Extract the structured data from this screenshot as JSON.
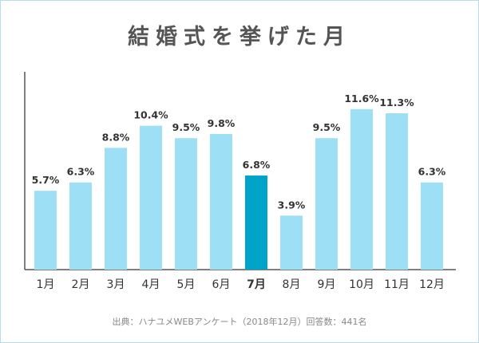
{
  "chart_data": {
    "type": "bar",
    "title": "結婚式を挙げた月",
    "categories": [
      "1月",
      "2月",
      "3月",
      "4月",
      "5月",
      "6月",
      "7月",
      "8月",
      "9月",
      "10月",
      "11月",
      "12月"
    ],
    "values": [
      5.7,
      6.3,
      8.8,
      10.4,
      9.5,
      9.8,
      6.8,
      3.9,
      9.5,
      11.6,
      11.3,
      6.3
    ],
    "value_labels": [
      "5.7%",
      "6.3%",
      "8.8%",
      "10.4%",
      "9.5%",
      "9.8%",
      "6.8%",
      "3.9%",
      "9.5%",
      "11.6%",
      "11.3%",
      "6.3%"
    ],
    "highlight_index": 6,
    "ylim": [
      0,
      14.3
    ],
    "grid": false,
    "legend": "none",
    "colors": {
      "bar": "#9ddff5",
      "highlight": "#00a4c9",
      "axis": "#555555",
      "text": "#333333"
    }
  },
  "footer": {
    "source": "出典：ハナユメWEBアンケート（2018年12月）回答数：441名"
  }
}
